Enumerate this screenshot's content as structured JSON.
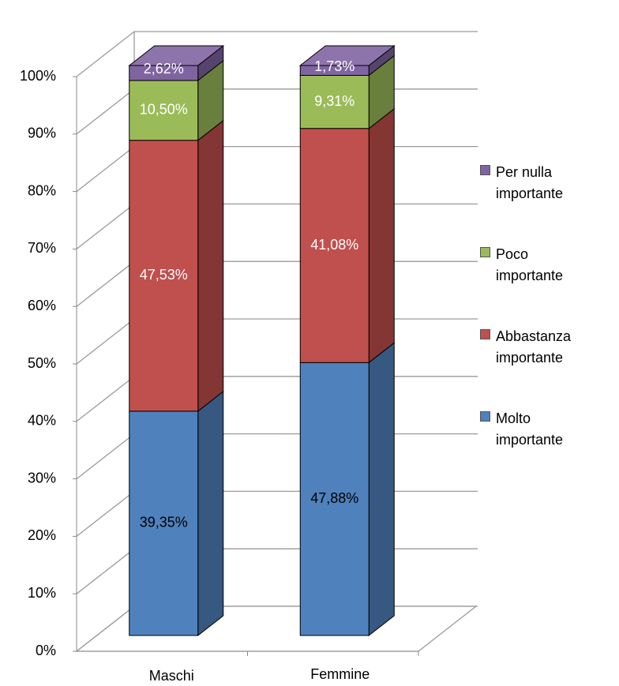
{
  "chart_data": {
    "type": "bar3d_stacked",
    "categories": [
      "Maschi",
      "Femmine"
    ],
    "series": [
      {
        "name": "Molto importante",
        "color": "#4f81bd",
        "values": [
          39.35,
          47.88
        ],
        "value_labels": [
          "39,35%",
          "47,88%"
        ]
      },
      {
        "name": "Abbastanza importante",
        "color": "#c0504d",
        "values": [
          47.53,
          41.08
        ],
        "value_labels": [
          "47,53%",
          "41,08%"
        ]
      },
      {
        "name": "Poco importante",
        "color": "#9bbb59",
        "values": [
          10.5,
          9.31
        ],
        "value_labels": [
          "10,50%",
          "9,31%"
        ]
      },
      {
        "name": "Per nulla importante",
        "color": "#8064a2",
        "values": [
          2.62,
          1.73
        ],
        "value_labels": [
          "2,62%",
          "1,73%"
        ]
      }
    ],
    "ylim": [
      0,
      100
    ],
    "yticks": [
      {
        "value": 0,
        "label": "0%"
      },
      {
        "value": 10,
        "label": "10%"
      },
      {
        "value": 20,
        "label": "20%"
      },
      {
        "value": 30,
        "label": "30%"
      },
      {
        "value": 40,
        "label": "40%"
      },
      {
        "value": 50,
        "label": "50%"
      },
      {
        "value": 60,
        "label": "60%"
      },
      {
        "value": 70,
        "label": "70%"
      },
      {
        "value": 80,
        "label": "80%"
      },
      {
        "value": 90,
        "label": "90%"
      },
      {
        "value": 100,
        "label": "100%"
      }
    ],
    "grid": true,
    "legend": "right"
  }
}
